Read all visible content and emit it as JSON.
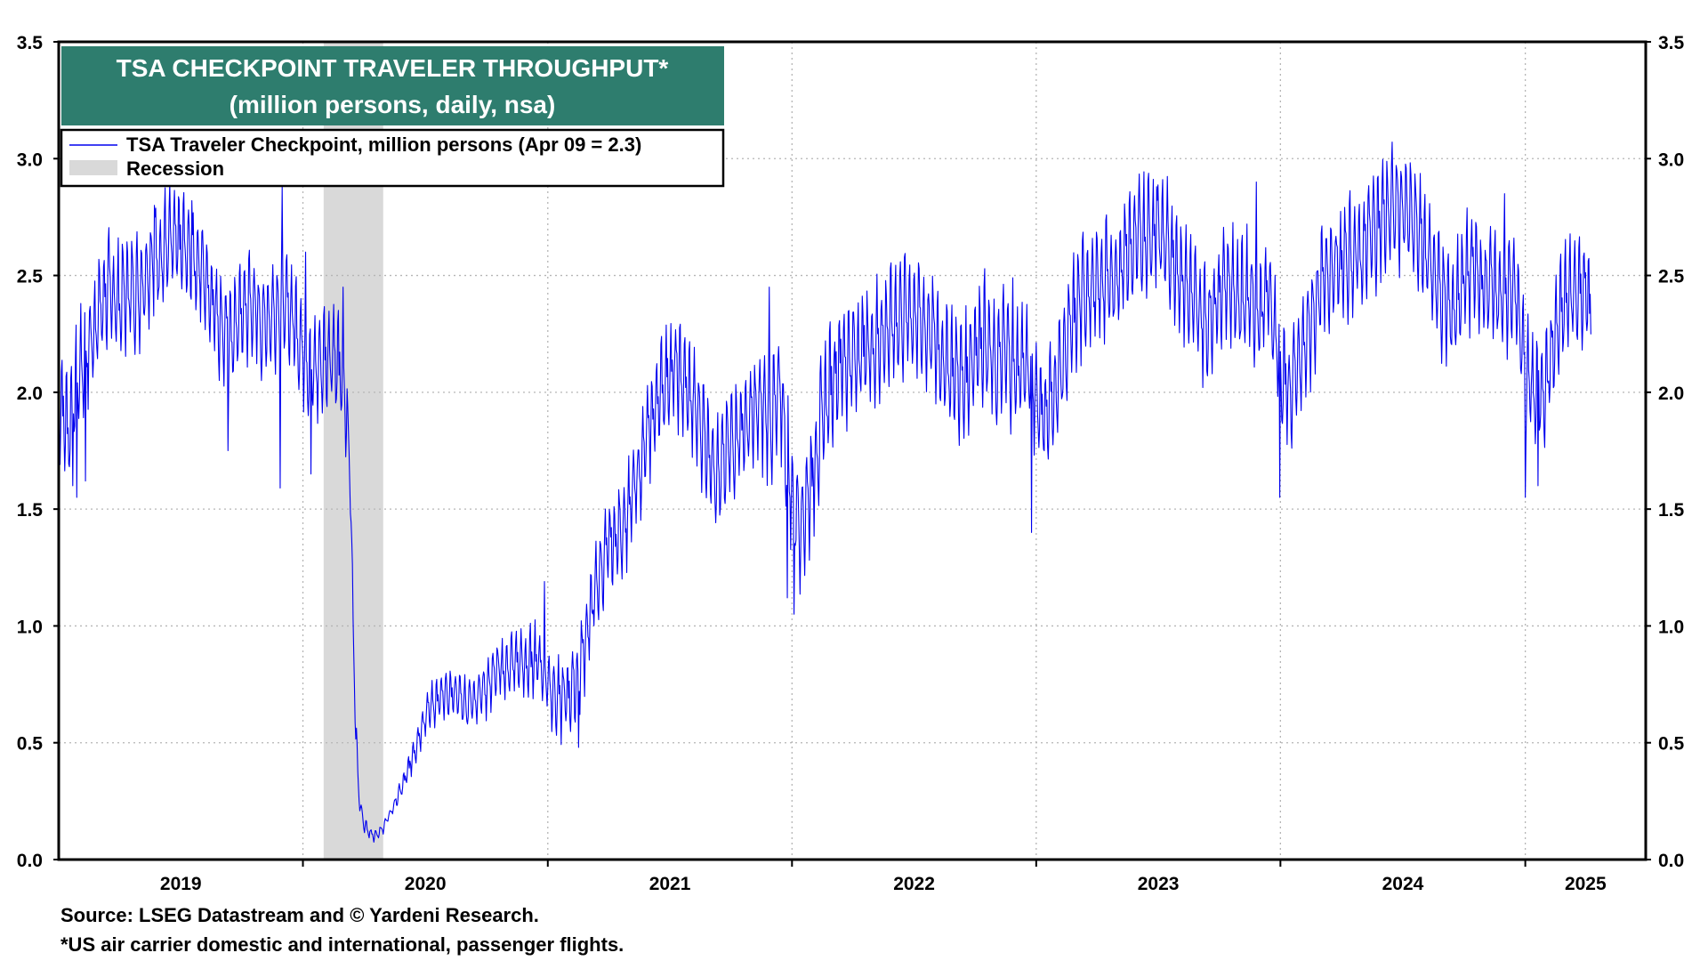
{
  "chart_data": {
    "type": "line",
    "title": "TSA CHECKPOINT TRAVELER THROUGHPUT*",
    "subtitle": "(million persons, daily, nsa)",
    "xlabel": "",
    "ylabel": "",
    "ylim": [
      0,
      3.5
    ],
    "y_ticks": [
      "0.0",
      "0.5",
      "1.0",
      "1.5",
      "2.0",
      "2.5",
      "3.0",
      "3.5"
    ],
    "x_tick_labels": [
      "2019",
      "2020",
      "2021",
      "2022",
      "2023",
      "2024",
      "2025"
    ],
    "x_range": [
      "2019-01-01",
      "2025-06-30"
    ],
    "grid": true,
    "legend": {
      "placement": "top-left",
      "entries": [
        {
          "label": "TSA Traveler Checkpoint, million persons (Apr 09 = 2.3)",
          "kind": "line",
          "color": "#0000ee"
        },
        {
          "label": "Recession",
          "kind": "box",
          "color": "#d9d9d9"
        }
      ]
    },
    "recession": {
      "start": "2020-02-01",
      "end": "2020-04-30"
    },
    "series": [
      {
        "name": "TSA Traveler Checkpoint, million persons (Apr 09 = 2.3)",
        "color": "#0000ee",
        "points": [
          [
            "2019-01-01",
            1.95
          ],
          [
            "2019-01-15",
            1.8
          ],
          [
            "2019-02-01",
            2.05
          ],
          [
            "2019-02-15",
            2.15
          ],
          [
            "2019-03-01",
            2.3
          ],
          [
            "2019-03-15",
            2.4
          ],
          [
            "2019-04-01",
            2.35
          ],
          [
            "2019-04-15",
            2.4
          ],
          [
            "2019-05-01",
            2.4
          ],
          [
            "2019-05-15",
            2.5
          ],
          [
            "2019-06-01",
            2.55
          ],
          [
            "2019-06-15",
            2.6
          ],
          [
            "2019-07-01",
            2.6
          ],
          [
            "2019-07-15",
            2.55
          ],
          [
            "2019-08-01",
            2.5
          ],
          [
            "2019-08-15",
            2.4
          ],
          [
            "2019-09-01",
            2.25
          ],
          [
            "2019-09-15",
            2.2
          ],
          [
            "2019-10-01",
            2.3
          ],
          [
            "2019-10-15",
            2.35
          ],
          [
            "2019-11-01",
            2.25
          ],
          [
            "2019-11-15",
            2.3
          ],
          [
            "2019-12-01",
            2.35
          ],
          [
            "2019-12-15",
            2.3
          ],
          [
            "2020-01-01",
            2.15
          ],
          [
            "2020-01-15",
            2.05
          ],
          [
            "2020-02-01",
            2.1
          ],
          [
            "2020-02-15",
            2.15
          ],
          [
            "2020-03-01",
            2.0
          ],
          [
            "2020-03-08",
            1.8
          ],
          [
            "2020-03-12",
            1.6
          ],
          [
            "2020-03-16",
            1.0
          ],
          [
            "2020-03-20",
            0.55
          ],
          [
            "2020-03-25",
            0.25
          ],
          [
            "2020-04-01",
            0.15
          ],
          [
            "2020-04-08",
            0.12
          ],
          [
            "2020-04-15",
            0.1
          ],
          [
            "2020-04-25",
            0.11
          ],
          [
            "2020-05-01",
            0.14
          ],
          [
            "2020-05-15",
            0.22
          ],
          [
            "2020-06-01",
            0.33
          ],
          [
            "2020-06-15",
            0.45
          ],
          [
            "2020-07-01",
            0.6
          ],
          [
            "2020-07-15",
            0.66
          ],
          [
            "2020-08-01",
            0.68
          ],
          [
            "2020-08-15",
            0.7
          ],
          [
            "2020-09-01",
            0.65
          ],
          [
            "2020-09-15",
            0.68
          ],
          [
            "2020-10-01",
            0.72
          ],
          [
            "2020-10-15",
            0.78
          ],
          [
            "2020-11-01",
            0.8
          ],
          [
            "2020-11-15",
            0.83
          ],
          [
            "2020-12-01",
            0.8
          ],
          [
            "2020-12-15",
            0.85
          ],
          [
            "2021-01-01",
            0.75
          ],
          [
            "2021-01-15",
            0.65
          ],
          [
            "2021-02-01",
            0.68
          ],
          [
            "2021-02-15",
            0.75
          ],
          [
            "2021-03-01",
            0.95
          ],
          [
            "2021-03-15",
            1.15
          ],
          [
            "2021-04-01",
            1.3
          ],
          [
            "2021-04-15",
            1.35
          ],
          [
            "2021-05-01",
            1.45
          ],
          [
            "2021-05-15",
            1.6
          ],
          [
            "2021-06-01",
            1.8
          ],
          [
            "2021-06-15",
            1.95
          ],
          [
            "2021-07-01",
            2.05
          ],
          [
            "2021-07-15",
            2.05
          ],
          [
            "2021-08-01",
            1.95
          ],
          [
            "2021-08-15",
            1.85
          ],
          [
            "2021-09-01",
            1.7
          ],
          [
            "2021-09-15",
            1.6
          ],
          [
            "2021-10-01",
            1.75
          ],
          [
            "2021-10-15",
            1.8
          ],
          [
            "2021-11-01",
            1.85
          ],
          [
            "2021-11-15",
            1.9
          ],
          [
            "2021-12-01",
            1.85
          ],
          [
            "2021-12-15",
            1.95
          ],
          [
            "2022-01-01",
            1.5
          ],
          [
            "2022-01-15",
            1.4
          ],
          [
            "2022-02-01",
            1.6
          ],
          [
            "2022-02-15",
            1.85
          ],
          [
            "2022-03-01",
            2.0
          ],
          [
            "2022-03-15",
            2.1
          ],
          [
            "2022-04-01",
            2.1
          ],
          [
            "2022-04-15",
            2.15
          ],
          [
            "2022-05-01",
            2.15
          ],
          [
            "2022-05-15",
            2.2
          ],
          [
            "2022-06-01",
            2.25
          ],
          [
            "2022-06-15",
            2.3
          ],
          [
            "2022-07-01",
            2.3
          ],
          [
            "2022-07-15",
            2.25
          ],
          [
            "2022-08-01",
            2.2
          ],
          [
            "2022-08-15",
            2.1
          ],
          [
            "2022-09-01",
            2.05
          ],
          [
            "2022-09-15",
            2.0
          ],
          [
            "2022-10-01",
            2.15
          ],
          [
            "2022-10-15",
            2.2
          ],
          [
            "2022-11-01",
            2.05
          ],
          [
            "2022-11-15",
            2.15
          ],
          [
            "2022-12-01",
            2.05
          ],
          [
            "2022-12-15",
            2.1
          ],
          [
            "2023-01-01",
            1.95
          ],
          [
            "2023-01-15",
            1.85
          ],
          [
            "2023-02-01",
            2.0
          ],
          [
            "2023-02-15",
            2.15
          ],
          [
            "2023-03-01",
            2.3
          ],
          [
            "2023-03-15",
            2.4
          ],
          [
            "2023-04-01",
            2.4
          ],
          [
            "2023-04-15",
            2.45
          ],
          [
            "2023-05-01",
            2.45
          ],
          [
            "2023-05-15",
            2.55
          ],
          [
            "2023-06-01",
            2.6
          ],
          [
            "2023-06-15",
            2.65
          ],
          [
            "2023-07-01",
            2.65
          ],
          [
            "2023-07-15",
            2.6
          ],
          [
            "2023-08-01",
            2.5
          ],
          [
            "2023-08-15",
            2.4
          ],
          [
            "2023-09-01",
            2.3
          ],
          [
            "2023-09-15",
            2.25
          ],
          [
            "2023-10-01",
            2.4
          ],
          [
            "2023-10-15",
            2.45
          ],
          [
            "2023-11-01",
            2.35
          ],
          [
            "2023-11-15",
            2.4
          ],
          [
            "2023-12-01",
            2.3
          ],
          [
            "2023-12-15",
            2.4
          ],
          [
            "2024-01-01",
            2.05
          ],
          [
            "2024-01-15",
            1.95
          ],
          [
            "2024-02-01",
            2.1
          ],
          [
            "2024-02-15",
            2.25
          ],
          [
            "2024-03-01",
            2.4
          ],
          [
            "2024-03-15",
            2.5
          ],
          [
            "2024-04-01",
            2.5
          ],
          [
            "2024-04-15",
            2.55
          ],
          [
            "2024-05-01",
            2.55
          ],
          [
            "2024-05-15",
            2.65
          ],
          [
            "2024-06-01",
            2.7
          ],
          [
            "2024-06-15",
            2.75
          ],
          [
            "2024-07-01",
            2.75
          ],
          [
            "2024-07-15",
            2.7
          ],
          [
            "2024-08-01",
            2.6
          ],
          [
            "2024-08-15",
            2.5
          ],
          [
            "2024-09-01",
            2.35
          ],
          [
            "2024-09-15",
            2.3
          ],
          [
            "2024-10-01",
            2.45
          ],
          [
            "2024-10-15",
            2.5
          ],
          [
            "2024-11-01",
            2.4
          ],
          [
            "2024-11-15",
            2.45
          ],
          [
            "2024-12-01",
            2.35
          ],
          [
            "2024-12-15",
            2.45
          ],
          [
            "2025-01-01",
            2.05
          ],
          [
            "2025-01-15",
            1.95
          ],
          [
            "2025-02-01",
            2.0
          ],
          [
            "2025-02-15",
            2.2
          ],
          [
            "2025-03-01",
            2.35
          ],
          [
            "2025-03-15",
            2.4
          ],
          [
            "2025-04-01",
            2.4
          ],
          [
            "2025-04-09",
            2.3
          ]
        ],
        "weekly_swing": [
          [
            "2019-01-01",
            0.32
          ],
          [
            "2019-12-31",
            0.3
          ],
          [
            "2020-03-01",
            0.32
          ],
          [
            "2020-03-25",
            0.04
          ],
          [
            "2020-05-15",
            0.03
          ],
          [
            "2020-07-01",
            0.12
          ],
          [
            "2020-11-01",
            0.18
          ],
          [
            "2021-03-01",
            0.25
          ],
          [
            "2021-12-31",
            0.35
          ],
          [
            "2025-04-09",
            0.32
          ]
        ],
        "spikes": [
          [
            "2019-01-22",
            1.6
          ],
          [
            "2019-01-28",
            1.55
          ],
          [
            "2019-02-10",
            1.62
          ],
          [
            "2019-05-24",
            2.8
          ],
          [
            "2019-07-19",
            2.82
          ],
          [
            "2019-09-11",
            1.75
          ],
          [
            "2019-11-28",
            1.59
          ],
          [
            "2019-12-01",
            2.88
          ],
          [
            "2020-01-05",
            2.6
          ],
          [
            "2020-01-13",
            1.65
          ],
          [
            "2020-03-01",
            2.45
          ],
          [
            "2020-12-27",
            1.19
          ],
          [
            "2021-02-16",
            0.48
          ],
          [
            "2021-11-28",
            2.45
          ],
          [
            "2021-12-25",
            1.12
          ],
          [
            "2022-01-04",
            1.05
          ],
          [
            "2022-11-27",
            2.49
          ],
          [
            "2022-12-25",
            1.4
          ],
          [
            "2023-06-30",
            2.88
          ],
          [
            "2023-11-26",
            2.9
          ],
          [
            "2023-12-31",
            1.55
          ],
          [
            "2024-06-23",
            2.95
          ],
          [
            "2024-07-07",
            2.96
          ],
          [
            "2024-12-01",
            2.85
          ],
          [
            "2025-01-01",
            1.55
          ],
          [
            "2025-01-20",
            1.6
          ]
        ]
      }
    ]
  },
  "footer": {
    "source": "Source: LSEG Datastream and © Yardeni Research.",
    "note": "*US air carrier domestic and international,  passenger flights."
  }
}
